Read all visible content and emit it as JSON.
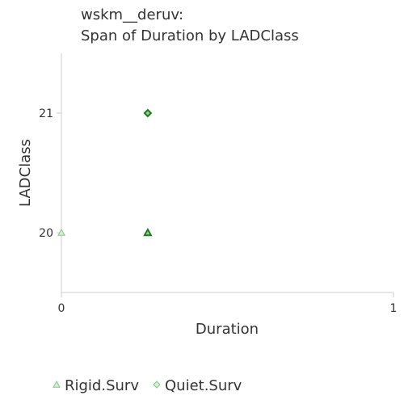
{
  "chart_data": {
    "type": "scatter",
    "title_lines": [
      "wskm__deruv:",
      "Span of Duration by LADClass"
    ],
    "xlabel": "Duration",
    "ylabel": "LADClass",
    "xlim": [
      0,
      1
    ],
    "ylim": [
      19.5,
      21.5
    ],
    "x_ticks": [
      0,
      1
    ],
    "y_ticks": [
      20,
      21
    ],
    "grid": false,
    "legend_position": "bottom-left",
    "series": [
      {
        "name": "Rigid.Surv",
        "marker": "triangle",
        "color": "#2ca02c",
        "points": [
          {
            "x": 0,
            "y": 20,
            "style": "light"
          },
          {
            "x": 0.26,
            "y": 20,
            "style": "bold"
          }
        ]
      },
      {
        "name": "Quiet.Surv",
        "marker": "diamond",
        "color": "#2ca02c",
        "points": [
          {
            "x": 0.26,
            "y": 21,
            "style": "bold"
          }
        ]
      }
    ]
  }
}
